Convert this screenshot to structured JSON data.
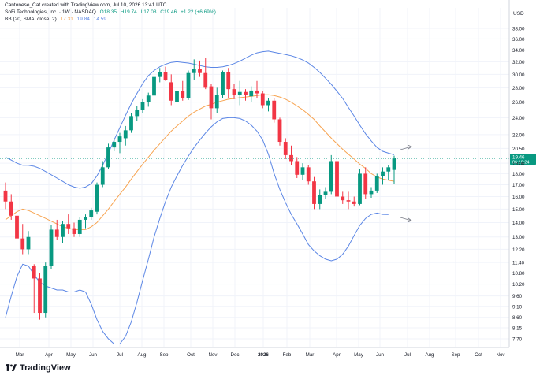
{
  "header": {
    "attribution": "Cantonese_Cat created with TradingView.com, Jul 10, 2026 13:41 UTC",
    "symbol_line": "SoFi Technologies, Inc. · 1W · NASDAQ",
    "ohlc": {
      "open": "O18.35",
      "high": "H19.74",
      "low": "L17.08",
      "close": "C19.46",
      "change": "+1.22 (+6.69%)"
    },
    "indicator": {
      "name": "BB (20, SMA, close, 2)",
      "basis": "17.31",
      "upper": "19.84",
      "lower": "14.59"
    }
  },
  "currency": "USD",
  "last_price": {
    "value": "19.46",
    "countdown": "06:18:24"
  },
  "branding": {
    "logo_text": "TradingView"
  },
  "colors": {
    "up": "#089981",
    "down": "#f23645",
    "basis": "#f7a451",
    "bands": "#5b86e5",
    "price_tag": "#089981"
  },
  "chart_data": {
    "type": "candlestick",
    "title": "SoFi Technologies, Inc. · 1W · NASDAQ",
    "y_axis": {
      "scale": "log",
      "ticks": [
        "38.00",
        "36.00",
        "34.00",
        "32.00",
        "30.00",
        "28.00",
        "26.00",
        "24.00",
        "22.00",
        "20.50",
        "19.00",
        "18.00",
        "17.00",
        "16.00",
        "15.00",
        "14.00",
        "13.00",
        "12.20",
        "11.40",
        "10.80",
        "10.20",
        "9.60",
        "9.10",
        "8.60",
        "8.15",
        "7.70"
      ],
      "range": [
        7.25,
        41.5
      ]
    },
    "x_axis": {
      "labels": [
        "Mar",
        "Apr",
        "May",
        "Jun",
        "Jul",
        "Aug",
        "Sep",
        "Oct",
        "Nov",
        "Dec",
        "2026",
        "Feb",
        "Mar",
        "Apr",
        "May",
        "Jun",
        "Jul",
        "Aug",
        "Sep",
        "Oct",
        "Nov"
      ]
    },
    "candles": [
      {
        "o": 16.5,
        "h": 17.2,
        "l": 15.0,
        "c": 15.6
      },
      {
        "o": 15.6,
        "h": 16.2,
        "l": 14.2,
        "c": 14.5
      },
      {
        "o": 14.5,
        "h": 14.8,
        "l": 12.6,
        "c": 12.9
      },
      {
        "o": 12.9,
        "h": 13.9,
        "l": 11.9,
        "c": 12.2
      },
      {
        "o": 12.2,
        "h": 13.4,
        "l": 11.9,
        "c": 13.0
      },
      {
        "o": 11.2,
        "h": 11.3,
        "l": 8.8,
        "c": 10.5
      },
      {
        "o": 10.5,
        "h": 10.8,
        "l": 8.5,
        "c": 8.8
      },
      {
        "o": 8.8,
        "h": 11.4,
        "l": 8.6,
        "c": 11.2
      },
      {
        "o": 11.2,
        "h": 13.8,
        "l": 11.0,
        "c": 13.5
      },
      {
        "o": 13.5,
        "h": 14.2,
        "l": 12.8,
        "c": 13.0
      },
      {
        "o": 13.0,
        "h": 14.1,
        "l": 12.6,
        "c": 13.9
      },
      {
        "o": 13.9,
        "h": 14.6,
        "l": 13.2,
        "c": 13.6
      },
      {
        "o": 13.6,
        "h": 14.0,
        "l": 13.0,
        "c": 13.2
      },
      {
        "o": 13.2,
        "h": 14.4,
        "l": 13.0,
        "c": 14.2
      },
      {
        "o": 14.2,
        "h": 14.6,
        "l": 13.6,
        "c": 14.4
      },
      {
        "o": 14.4,
        "h": 15.1,
        "l": 14.2,
        "c": 14.9
      },
      {
        "o": 14.8,
        "h": 17.2,
        "l": 14.6,
        "c": 17.0
      },
      {
        "o": 17.0,
        "h": 19.2,
        "l": 16.8,
        "c": 18.6
      },
      {
        "o": 18.6,
        "h": 21.0,
        "l": 18.4,
        "c": 20.6
      },
      {
        "o": 20.6,
        "h": 21.6,
        "l": 20.2,
        "c": 21.2
      },
      {
        "o": 21.2,
        "h": 22.2,
        "l": 20.0,
        "c": 21.8
      },
      {
        "o": 21.6,
        "h": 23.0,
        "l": 20.8,
        "c": 22.5
      },
      {
        "o": 22.5,
        "h": 24.6,
        "l": 22.2,
        "c": 24.2
      },
      {
        "o": 24.2,
        "h": 25.5,
        "l": 23.6,
        "c": 25.0
      },
      {
        "o": 25.0,
        "h": 26.4,
        "l": 24.6,
        "c": 26.0
      },
      {
        "o": 26.0,
        "h": 27.3,
        "l": 25.4,
        "c": 26.9
      },
      {
        "o": 26.9,
        "h": 30.0,
        "l": 26.6,
        "c": 29.6
      },
      {
        "o": 29.6,
        "h": 31.0,
        "l": 28.8,
        "c": 30.4
      },
      {
        "o": 30.4,
        "h": 31.2,
        "l": 29.0,
        "c": 29.2
      },
      {
        "o": 28.8,
        "h": 30.0,
        "l": 25.6,
        "c": 26.2
      },
      {
        "o": 26.0,
        "h": 28.0,
        "l": 25.4,
        "c": 27.5
      },
      {
        "o": 27.5,
        "h": 29.0,
        "l": 26.2,
        "c": 26.6
      },
      {
        "o": 26.6,
        "h": 30.6,
        "l": 26.3,
        "c": 30.2
      },
      {
        "o": 30.2,
        "h": 32.4,
        "l": 29.2,
        "c": 30.8
      },
      {
        "o": 30.8,
        "h": 32.2,
        "l": 29.6,
        "c": 30.2
      },
      {
        "o": 30.2,
        "h": 32.6,
        "l": 27.8,
        "c": 28.0
      },
      {
        "o": 28.2,
        "h": 28.6,
        "l": 23.8,
        "c": 25.2
      },
      {
        "o": 25.2,
        "h": 28.0,
        "l": 24.6,
        "c": 27.0
      },
      {
        "o": 27.0,
        "h": 30.6,
        "l": 26.6,
        "c": 30.4
      },
      {
        "o": 30.4,
        "h": 31.0,
        "l": 26.6,
        "c": 27.8
      },
      {
        "o": 27.8,
        "h": 28.6,
        "l": 26.4,
        "c": 27.0
      },
      {
        "o": 27.0,
        "h": 29.0,
        "l": 25.6,
        "c": 27.4
      },
      {
        "o": 27.4,
        "h": 27.8,
        "l": 26.2,
        "c": 27.0
      },
      {
        "o": 26.8,
        "h": 28.2,
        "l": 26.0,
        "c": 27.6
      },
      {
        "o": 27.6,
        "h": 29.0,
        "l": 26.5,
        "c": 27.2
      },
      {
        "o": 27.2,
        "h": 27.5,
        "l": 25.2,
        "c": 25.6
      },
      {
        "o": 25.6,
        "h": 26.6,
        "l": 24.8,
        "c": 26.2
      },
      {
        "o": 26.2,
        "h": 26.6,
        "l": 23.4,
        "c": 23.8
      },
      {
        "o": 23.8,
        "h": 24.0,
        "l": 20.8,
        "c": 21.2
      },
      {
        "o": 21.2,
        "h": 21.6,
        "l": 19.4,
        "c": 19.8
      },
      {
        "o": 19.8,
        "h": 20.8,
        "l": 18.8,
        "c": 19.2
      },
      {
        "o": 19.2,
        "h": 19.6,
        "l": 17.6,
        "c": 17.9
      },
      {
        "o": 17.9,
        "h": 19.0,
        "l": 17.4,
        "c": 18.6
      },
      {
        "o": 18.6,
        "h": 18.8,
        "l": 17.0,
        "c": 17.3
      },
      {
        "o": 17.3,
        "h": 17.7,
        "l": 15.0,
        "c": 15.4
      },
      {
        "o": 15.4,
        "h": 16.6,
        "l": 15.0,
        "c": 16.1
      },
      {
        "o": 16.1,
        "h": 16.8,
        "l": 15.8,
        "c": 16.4
      },
      {
        "o": 16.4,
        "h": 19.8,
        "l": 16.2,
        "c": 19.2
      },
      {
        "o": 19.2,
        "h": 19.6,
        "l": 15.6,
        "c": 16.0
      },
      {
        "o": 16.0,
        "h": 16.4,
        "l": 15.4,
        "c": 15.7
      },
      {
        "o": 15.7,
        "h": 16.4,
        "l": 15.0,
        "c": 15.6
      },
      {
        "o": 15.6,
        "h": 16.0,
        "l": 15.2,
        "c": 15.4
      },
      {
        "o": 15.4,
        "h": 18.4,
        "l": 15.3,
        "c": 18.0
      },
      {
        "o": 18.0,
        "h": 18.6,
        "l": 15.8,
        "c": 16.2
      },
      {
        "o": 16.2,
        "h": 16.8,
        "l": 15.9,
        "c": 16.5
      },
      {
        "o": 16.5,
        "h": 18.0,
        "l": 16.3,
        "c": 17.8
      },
      {
        "o": 17.8,
        "h": 18.6,
        "l": 17.0,
        "c": 18.2
      },
      {
        "o": 18.2,
        "h": 18.8,
        "l": 17.4,
        "c": 18.6
      },
      {
        "o": 18.35,
        "h": 19.74,
        "l": 17.08,
        "c": 19.46
      }
    ],
    "bb_basis": [
      14.2,
      14.5,
      14.8,
      15.0,
      14.9,
      14.7,
      14.5,
      14.3,
      14.1,
      13.9,
      13.7,
      13.6,
      13.5,
      13.5,
      13.5,
      13.7,
      14.0,
      14.5,
      15.0,
      15.6,
      16.2,
      16.8,
      17.5,
      18.2,
      18.9,
      19.6,
      20.3,
      21.0,
      21.7,
      22.4,
      23.0,
      23.6,
      24.2,
      24.7,
      25.1,
      25.5,
      25.7,
      26.0,
      26.2,
      26.4,
      26.5,
      26.6,
      26.7,
      26.8,
      26.9,
      27.0,
      27.0,
      26.9,
      26.7,
      26.4,
      26.0,
      25.5,
      25.0,
      24.4,
      23.8,
      23.0,
      22.3,
      21.6,
      21.0,
      20.4,
      19.9,
      19.4,
      18.9,
      18.5,
      18.0,
      17.7,
      17.5,
      17.4,
      17.31
    ],
    "bb_upper": [
      19.6,
      19.3,
      19.0,
      18.8,
      18.8,
      18.7,
      18.5,
      18.2,
      17.9,
      17.6,
      17.3,
      17.0,
      16.8,
      16.7,
      16.8,
      17.1,
      17.8,
      18.8,
      20.0,
      21.4,
      22.8,
      24.3,
      25.8,
      27.2,
      28.6,
      29.8,
      30.6,
      31.2,
      31.6,
      31.9,
      32.0,
      31.9,
      31.8,
      31.6,
      31.4,
      31.2,
      31.1,
      31.1,
      31.2,
      31.4,
      31.7,
      32.1,
      32.6,
      33.1,
      33.5,
      33.7,
      33.8,
      33.6,
      33.4,
      33.2,
      33.0,
      32.7,
      32.3,
      31.8,
      31.1,
      30.3,
      29.4,
      28.5,
      27.5,
      26.5,
      25.3,
      24.2,
      23.1,
      22.1,
      21.3,
      20.6,
      20.2,
      20.0,
      19.84
    ],
    "bb_lower": [
      8.6,
      9.6,
      10.6,
      11.3,
      11.2,
      10.7,
      10.3,
      10.1,
      10.0,
      9.9,
      9.9,
      9.8,
      9.8,
      9.9,
      9.8,
      9.2,
      8.5,
      8.0,
      7.7,
      7.5,
      7.5,
      7.8,
      8.4,
      9.3,
      10.4,
      11.6,
      13.0,
      14.3,
      15.6,
      16.8,
      17.8,
      18.8,
      19.7,
      20.6,
      21.4,
      22.2,
      22.9,
      23.5,
      23.9,
      24.0,
      24.0,
      23.9,
      23.6,
      23.1,
      22.4,
      21.4,
      19.9,
      18.0,
      16.6,
      15.5,
      14.6,
      13.9,
      13.2,
      12.5,
      12.1,
      11.8,
      11.6,
      11.5,
      11.6,
      11.9,
      12.4,
      13.1,
      13.8,
      14.3,
      14.6,
      14.7,
      14.6,
      14.59
    ]
  }
}
